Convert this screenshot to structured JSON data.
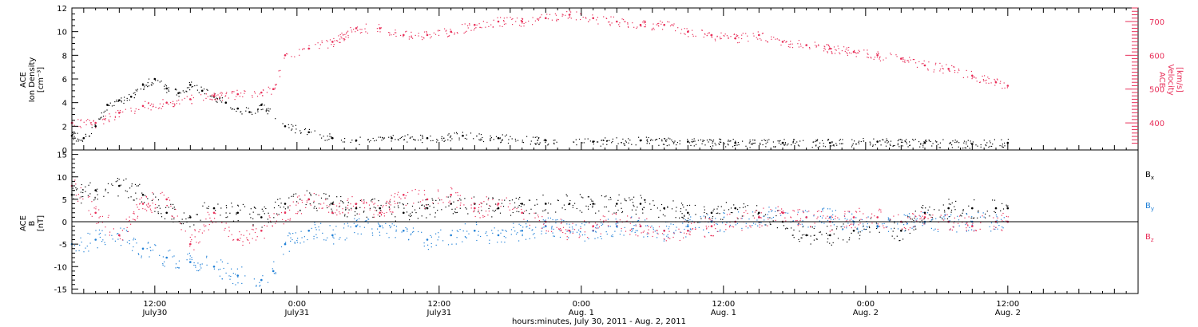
{
  "chart_data": [
    {
      "type": "scatter",
      "title": "",
      "ylabel_left": [
        "ACE",
        "Ion Density",
        "[cm⁻³]"
      ],
      "ylabel_right": [
        "ACE",
        "Velocity",
        "[km/s]"
      ],
      "ylim_left": [
        0,
        12
      ],
      "yticks_left": [
        0,
        2,
        4,
        6,
        8,
        10,
        12
      ],
      "ylim_right": [
        320,
        740
      ],
      "yticks_right": [
        400,
        500,
        600,
        700
      ],
      "colors": {
        "density": "#000000",
        "velocity": "#e8305a"
      },
      "series": [
        {
          "name": "Ion Density",
          "axis": "left",
          "color": "#000000",
          "x": [
            0,
            1,
            2,
            3,
            4,
            5,
            6,
            7,
            8,
            9,
            10,
            11,
            12,
            13,
            14,
            15,
            16,
            18,
            20,
            22,
            24,
            27,
            30,
            33,
            36,
            40,
            44,
            48,
            52,
            56,
            60,
            64,
            68,
            72,
            76,
            79
          ],
          "y": [
            1.2,
            1.0,
            2.0,
            3.8,
            4.2,
            4.5,
            5.5,
            6.0,
            5.2,
            4.8,
            5.5,
            5.0,
            4.5,
            4.0,
            3.5,
            3.2,
            3.8,
            2.0,
            1.5,
            1.0,
            0.8,
            1.0,
            1.0,
            1.2,
            1.0,
            0.8,
            0.7,
            0.8,
            0.7,
            0.6,
            0.6,
            0.6,
            0.7,
            0.6,
            0.5,
            0.6
          ]
        },
        {
          "name": "Velocity",
          "axis": "right",
          "color": "#e8305a",
          "x": [
            0,
            2,
            4,
            6,
            8,
            10,
            12,
            14,
            16,
            17,
            18,
            20,
            22,
            24,
            26,
            28,
            30,
            32,
            34,
            36,
            38,
            40,
            42,
            44,
            46,
            48,
            50,
            52,
            54,
            56,
            58,
            60,
            62,
            64,
            66,
            68,
            70,
            72,
            74,
            76,
            78,
            79
          ],
          "y": [
            400,
            400,
            430,
            450,
            460,
            470,
            480,
            485,
            490,
            500,
            600,
            620,
            640,
            680,
            680,
            660,
            660,
            670,
            690,
            700,
            700,
            710,
            720,
            710,
            700,
            690,
            690,
            670,
            660,
            650,
            660,
            640,
            630,
            620,
            610,
            600,
            590,
            570,
            560,
            540,
            520,
            510
          ]
        }
      ]
    },
    {
      "type": "scatter",
      "title": "",
      "ylabel": [
        "ACE",
        "B",
        "[nT]"
      ],
      "ylim": [
        -16,
        16
      ],
      "yticks": [
        -15,
        -10,
        -5,
        0,
        5,
        10,
        15
      ],
      "zero_line": true,
      "legend_position": "right",
      "series": [
        {
          "name": "Bx",
          "label_main": "B",
          "label_sub": "x",
          "color": "#000000",
          "x": [
            0,
            2,
            4,
            6,
            8,
            10,
            12,
            14,
            16,
            18,
            20,
            22,
            24,
            26,
            28,
            30,
            32,
            34,
            36,
            38,
            40,
            42,
            44,
            46,
            48,
            50,
            52,
            54,
            56,
            58,
            60,
            62,
            64,
            66,
            68,
            70,
            72,
            74,
            76,
            78,
            79
          ],
          "y": [
            6,
            7,
            8,
            6,
            2,
            1,
            3,
            2,
            1,
            4,
            5,
            4,
            3,
            3,
            2,
            3,
            4,
            4,
            3,
            4,
            4,
            4,
            4,
            4,
            4,
            3,
            2,
            2,
            3,
            2,
            0,
            -3,
            -3,
            -2,
            -1,
            -2,
            2,
            3,
            3,
            3,
            3
          ]
        },
        {
          "name": "By",
          "label_main": "B",
          "label_sub": "y",
          "color": "#1f7fd6",
          "x": [
            0,
            2,
            4,
            6,
            8,
            10,
            12,
            14,
            16,
            17,
            18,
            20,
            22,
            24,
            26,
            28,
            30,
            32,
            34,
            36,
            38,
            40,
            42,
            44,
            46,
            48,
            50,
            52,
            54,
            56,
            58,
            60,
            62,
            64,
            66,
            68,
            70,
            72,
            74,
            76,
            78,
            79
          ],
          "y": [
            -5,
            -4,
            -3,
            -6,
            -8,
            -9,
            -10,
            -12,
            -13,
            -11,
            -5,
            -2,
            -3,
            -1,
            -1,
            -2,
            -4,
            -3,
            -2,
            -3,
            -2,
            -1,
            -2,
            -2,
            -1,
            -1,
            -2,
            -1,
            0,
            0,
            1,
            2,
            1,
            1,
            0,
            -1,
            0,
            0,
            0,
            0,
            0,
            0
          ]
        },
        {
          "name": "Bz",
          "label_main": "B",
          "label_sub": "z",
          "color": "#e8305a",
          "x": [
            0,
            2,
            4,
            6,
            8,
            10,
            12,
            14,
            16,
            18,
            20,
            22,
            24,
            26,
            28,
            30,
            32,
            34,
            36,
            38,
            40,
            42,
            44,
            46,
            48,
            50,
            52,
            54,
            56,
            58,
            60,
            62,
            64,
            66,
            68,
            70,
            72,
            74,
            76,
            78,
            79
          ],
          "y": [
            8,
            2,
            -3,
            4,
            5,
            -5,
            2,
            -4,
            -2,
            2,
            5,
            2,
            4,
            2,
            6,
            5,
            6,
            3,
            4,
            2,
            0,
            -2,
            -1,
            0,
            -1,
            -2,
            -2,
            -1,
            0,
            1,
            2,
            1,
            0,
            1,
            1,
            0,
            1,
            0,
            -1,
            0,
            0
          ]
        }
      ]
    }
  ],
  "x_axis": {
    "xlim": [
      0,
      90
    ],
    "major_ticks": [
      {
        "pos": 7,
        "time": "12:00",
        "date": "July30"
      },
      {
        "pos": 19,
        "time": "0:00",
        "date": "July31"
      },
      {
        "pos": 31,
        "time": "12:00",
        "date": "July31"
      },
      {
        "pos": 43,
        "time": "0:00",
        "date": "Aug. 1"
      },
      {
        "pos": 55,
        "time": "12:00",
        "date": "Aug. 1"
      },
      {
        "pos": 67,
        "time": "0:00",
        "date": "Aug. 2"
      },
      {
        "pos": 79,
        "time": "12:00",
        "date": "Aug. 2"
      }
    ],
    "xlabel": "hours:minutes, July 30, 2011 - Aug.  2, 2011"
  }
}
